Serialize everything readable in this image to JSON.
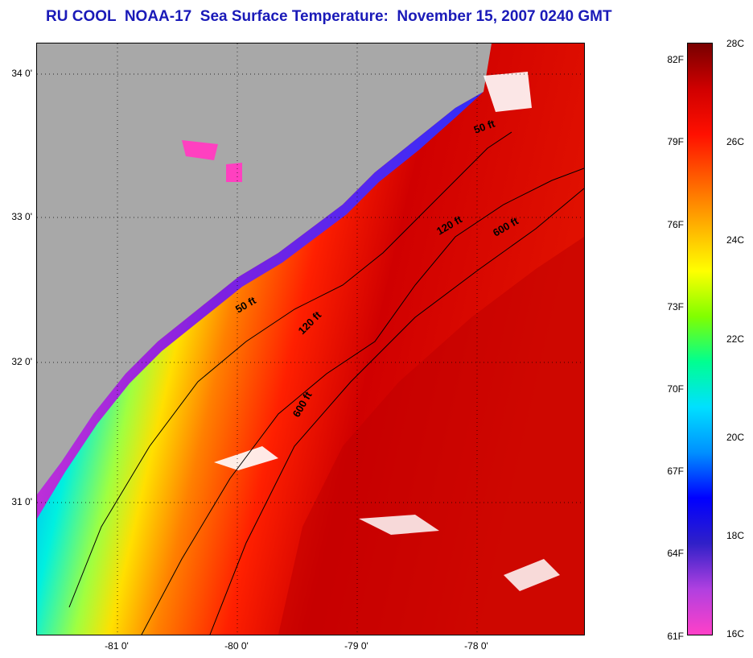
{
  "title": "RU COOL  NOAA-17  Sea Surface Temperature:  November 15, 2007 0240 GMT",
  "map": {
    "latitude_labels": [
      "34 0'",
      "33 0'",
      "32 0'",
      "31 0'"
    ],
    "longitude_labels": [
      "-81 0'",
      "-80 0'",
      "-79 0'",
      "-78 0'"
    ],
    "isobath_labels": [
      "50 ft",
      "50 ft",
      "120 ft",
      "120 ft",
      "600 ft",
      "600 ft"
    ],
    "colors": {
      "land": "#a8a8a8",
      "cold": "#ff44cc",
      "cool": "#0033ff",
      "mid": "#00e0ff",
      "warm": "#ff6600",
      "hot": "#c80000"
    }
  },
  "colorbar": {
    "fahrenheit_labels": [
      "82F",
      "79F",
      "76F",
      "73F",
      "70F",
      "67F",
      "64F",
      "61F"
    ],
    "celsius_labels": [
      "28C",
      "26C",
      "24C",
      "22C",
      "20C",
      "18C",
      "16C"
    ],
    "range_celsius": [
      16,
      28
    ],
    "stops": [
      "#ff40c8",
      "#b040e0",
      "#3020c8",
      "#0000ff",
      "#0090ff",
      "#00e0ff",
      "#00ff90",
      "#80ff00",
      "#ffff00",
      "#ffb000",
      "#ff6000",
      "#ff1000",
      "#d00000",
      "#780000"
    ]
  }
}
